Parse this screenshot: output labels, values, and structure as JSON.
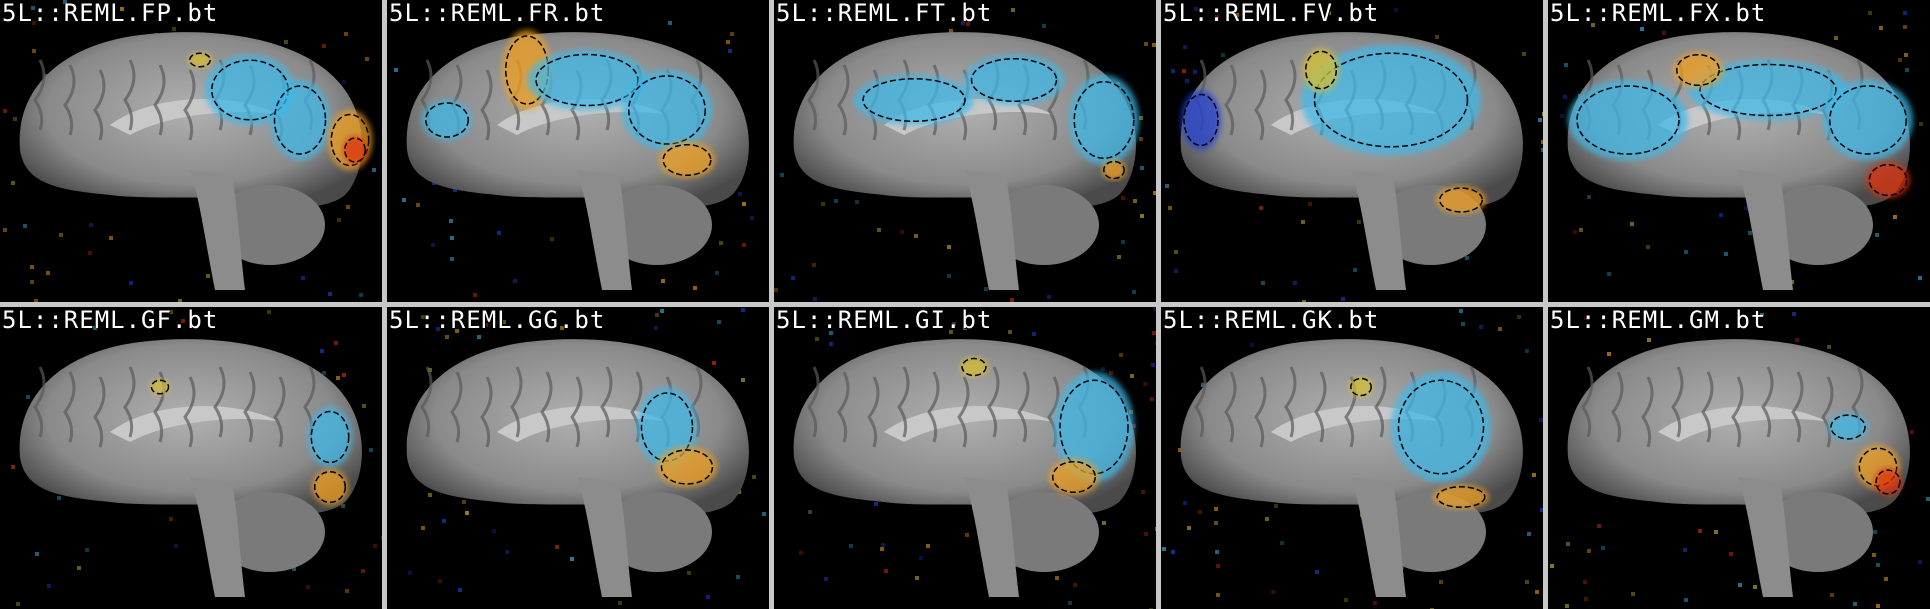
{
  "panels": [
    {
      "label": "5L::REML.FP.bt",
      "variant": 0
    },
    {
      "label": "5L::REML.FR.bt",
      "variant": 1
    },
    {
      "label": "5L::REML.FT.bt",
      "variant": 2
    },
    {
      "label": "5L::REML.FV.bt",
      "variant": 3
    },
    {
      "label": "5L::REML.FX.bt",
      "variant": 4
    },
    {
      "label": "5L::REML.GF.bt",
      "variant": 5
    },
    {
      "label": "5L::REML.GG.bt",
      "variant": 6
    },
    {
      "label": "5L::REML.GI.bt",
      "variant": 7
    },
    {
      "label": "5L::REML.GK.bt",
      "variant": 8
    },
    {
      "label": "5L::REML.GM.bt",
      "variant": 9
    }
  ],
  "colors": {
    "separator": "#c8c8c8",
    "background": "#000000",
    "brain": "#8a8a8a",
    "blue": "#3fb8e8",
    "deep_blue": "#2040d0",
    "orange": "#f0a020",
    "red": "#e03010",
    "yellow": "#d8c030"
  }
}
